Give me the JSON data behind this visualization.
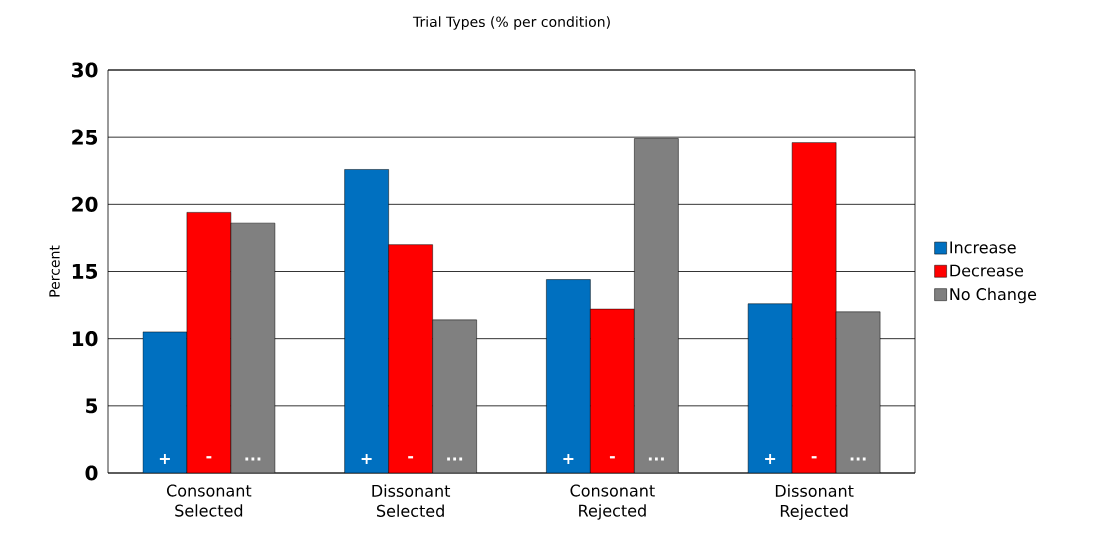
{
  "chart_data": {
    "type": "bar",
    "title": "Trial Types (% per condition)",
    "ylabel": "Percent",
    "categories": [
      "Consonant Selected",
      "Dissonant Selected",
      "Consonant Rejected",
      "Dissonant Rejected"
    ],
    "series": [
      {
        "name": "Increase",
        "color": "#0070c0",
        "values": [
          10.5,
          22.6,
          14.4,
          12.6
        ],
        "value_labels": [
          "+",
          "+",
          "+",
          "+"
        ]
      },
      {
        "name": "Decrease",
        "color": "#ff0000",
        "values": [
          19.4,
          17.0,
          12.2,
          24.6
        ],
        "value_labels": [
          "-",
          "-",
          "-",
          "-"
        ]
      },
      {
        "name": "No Change",
        "color": "#808080",
        "values": [
          18.6,
          11.4,
          24.9,
          12.0
        ],
        "value_labels": [
          "...",
          "...",
          "...",
          "..."
        ]
      }
    ],
    "ylim": [
      0,
      30
    ],
    "yticks": [
      0,
      5,
      10,
      15,
      20,
      25,
      30
    ],
    "grid": "y",
    "legend": "right"
  }
}
